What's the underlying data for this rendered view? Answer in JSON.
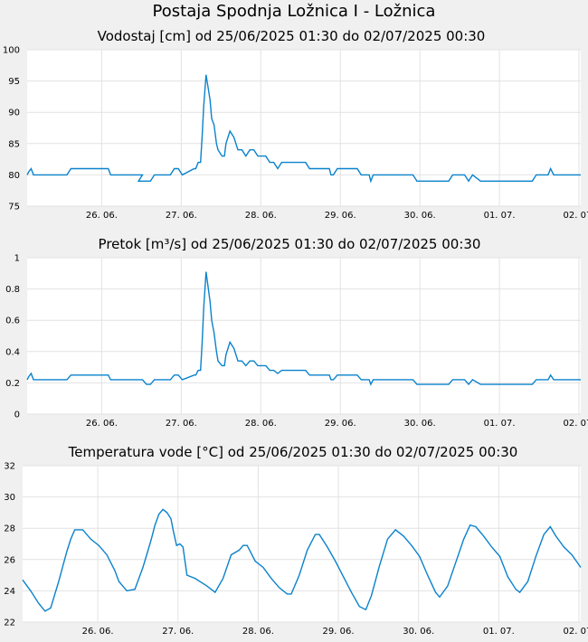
{
  "page_title": "Postaja Spodnja Ložnica I - Ložnica",
  "colors": {
    "series": "#0a82cc",
    "background": "#f0f0f0",
    "plot_background": "#ffffff",
    "grid": "#e2e2e2"
  },
  "chart_data": [
    {
      "type": "line",
      "title": "Vodostaj [cm] od 25/06/2025 01:30 do 02/07/2025 00:30",
      "xlabel": "",
      "ylabel": "",
      "x_tick_labels": [
        "26. 06.",
        "27. 06.",
        "28. 06.",
        "29. 06.",
        "30. 06.",
        "01. 07.",
        "02. 07."
      ],
      "x_tick_days": [
        0.9375,
        1.9375,
        2.9375,
        3.9375,
        4.9375,
        5.9375,
        6.9375
      ],
      "xlim_days": [
        0,
        6.96
      ],
      "yticks": [
        75,
        80,
        85,
        90,
        95,
        100
      ],
      "ylim": [
        75,
        100
      ],
      "grid": true,
      "series": [
        {
          "x_days": [
            0,
            0.02,
            0.05,
            0.08,
            0.1,
            0.5,
            0.55,
            1.02,
            1.05,
            1.4,
            1.45,
            1.4,
            1.55,
            1.6,
            1.8,
            1.85,
            1.9,
            1.95,
            2.1,
            2.12,
            2.15,
            2.18,
            2.2,
            2.22,
            2.25,
            2.3,
            2.32,
            2.35,
            2.38,
            2.4,
            2.45,
            2.48,
            2.5,
            2.55,
            2.6,
            2.65,
            2.7,
            2.75,
            2.8,
            2.85,
            2.9,
            2.95,
            3.0,
            3.05,
            3.1,
            3.15,
            3.2,
            3.3,
            3.5,
            3.55,
            3.8,
            3.82,
            3.85,
            3.9,
            4.15,
            4.2,
            4.3,
            4.32,
            4.35,
            4.4,
            4.85,
            4.9,
            5.3,
            5.35,
            5.5,
            5.55,
            5.6,
            5.7,
            6.35,
            6.4,
            6.55,
            6.58,
            6.62,
            6.96
          ],
          "values": [
            80,
            80.5,
            81,
            80,
            80,
            80,
            81,
            81,
            80,
            80,
            80,
            79,
            79,
            80,
            80,
            81,
            81,
            80,
            81,
            81,
            82,
            82,
            86,
            91,
            96,
            92,
            89,
            88,
            85,
            84,
            83,
            83,
            85,
            87,
            86,
            84,
            84,
            83,
            84,
            84,
            83,
            83,
            83,
            82,
            82,
            81,
            82,
            82,
            82,
            81,
            81,
            80,
            80,
            81,
            81,
            80,
            80,
            79,
            80,
            80,
            80,
            79,
            79,
            80,
            80,
            79,
            80,
            79,
            79,
            80,
            80,
            81,
            80,
            80
          ]
        }
      ]
    },
    {
      "type": "line",
      "title": "Pretok [m³/s] od 25/06/2025 01:30 do 02/07/2025 00:30",
      "xlabel": "",
      "ylabel": "",
      "x_tick_labels": [
        "26. 06.",
        "27. 06.",
        "28. 06.",
        "29. 06.",
        "30. 06.",
        "01. 07.",
        "02. 07."
      ],
      "x_tick_days": [
        0.9375,
        1.9375,
        2.9375,
        3.9375,
        4.9375,
        5.9375,
        6.9375
      ],
      "xlim_days": [
        0,
        6.96
      ],
      "yticks": [
        0,
        0.2,
        0.4,
        0.6,
        0.8,
        1
      ],
      "ylim": [
        0,
        1
      ],
      "grid": true,
      "series": [
        {
          "x_days": [
            0,
            0.02,
            0.05,
            0.08,
            0.1,
            0.5,
            0.55,
            1.02,
            1.05,
            1.4,
            1.45,
            1.5,
            1.55,
            1.6,
            1.8,
            1.85,
            1.9,
            1.95,
            2.1,
            2.12,
            2.15,
            2.18,
            2.2,
            2.22,
            2.25,
            2.3,
            2.32,
            2.35,
            2.38,
            2.4,
            2.45,
            2.48,
            2.5,
            2.55,
            2.6,
            2.65,
            2.7,
            2.75,
            2.8,
            2.85,
            2.9,
            2.95,
            3.0,
            3.05,
            3.1,
            3.15,
            3.2,
            3.3,
            3.5,
            3.55,
            3.8,
            3.82,
            3.85,
            3.9,
            4.15,
            4.2,
            4.3,
            4.32,
            4.35,
            4.4,
            4.85,
            4.9,
            5.3,
            5.35,
            5.5,
            5.55,
            5.6,
            5.7,
            6.35,
            6.4,
            6.55,
            6.58,
            6.62,
            6.96
          ],
          "values": [
            0.22,
            0.24,
            0.26,
            0.22,
            0.22,
            0.22,
            0.25,
            0.25,
            0.22,
            0.22,
            0.22,
            0.19,
            0.19,
            0.22,
            0.22,
            0.25,
            0.25,
            0.22,
            0.25,
            0.25,
            0.28,
            0.28,
            0.45,
            0.68,
            0.91,
            0.72,
            0.6,
            0.52,
            0.4,
            0.34,
            0.31,
            0.31,
            0.38,
            0.46,
            0.42,
            0.34,
            0.34,
            0.31,
            0.34,
            0.34,
            0.31,
            0.31,
            0.31,
            0.28,
            0.28,
            0.26,
            0.28,
            0.28,
            0.28,
            0.25,
            0.25,
            0.22,
            0.22,
            0.25,
            0.25,
            0.22,
            0.22,
            0.19,
            0.22,
            0.22,
            0.22,
            0.19,
            0.19,
            0.22,
            0.22,
            0.19,
            0.22,
            0.19,
            0.19,
            0.22,
            0.22,
            0.25,
            0.22,
            0.22
          ]
        }
      ]
    },
    {
      "type": "line",
      "title": "Temperatura vode [°C] od 25/06/2025 01:30 do 02/07/2025 00:30",
      "xlabel": "",
      "ylabel": "",
      "x_tick_labels": [
        "26. 06.",
        "27. 06.",
        "28. 06.",
        "29. 06.",
        "30. 06.",
        "01. 07.",
        "02. 07."
      ],
      "x_tick_days": [
        0.9375,
        1.9375,
        2.9375,
        3.9375,
        4.9375,
        5.9375,
        6.9375
      ],
      "xlim_days": [
        0,
        6.96
      ],
      "yticks": [
        22,
        24,
        26,
        28,
        30,
        32
      ],
      "ylim": [
        22,
        32
      ],
      "grid": true,
      "series": [
        {
          "x_days": [
            0,
            0.1,
            0.2,
            0.28,
            0.35,
            0.45,
            0.55,
            0.6,
            0.65,
            0.75,
            0.85,
            0.95,
            1.05,
            1.15,
            1.2,
            1.3,
            1.4,
            1.5,
            1.6,
            1.65,
            1.7,
            1.75,
            1.8,
            1.85,
            1.88,
            1.92,
            1.96,
            2.0,
            2.05,
            2.15,
            2.3,
            2.4,
            2.5,
            2.6,
            2.7,
            2.75,
            2.8,
            2.85,
            2.9,
            3.0,
            3.1,
            3.2,
            3.3,
            3.35,
            3.45,
            3.55,
            3.65,
            3.7,
            3.8,
            3.9,
            4.0,
            4.1,
            4.2,
            4.28,
            4.35,
            4.45,
            4.55,
            4.65,
            4.75,
            4.85,
            4.95,
            5.05,
            5.15,
            5.2,
            5.3,
            5.4,
            5.5,
            5.58,
            5.65,
            5.75,
            5.85,
            5.95,
            6.05,
            6.15,
            6.2,
            6.3,
            6.4,
            6.5,
            6.58,
            6.65,
            6.75,
            6.85,
            6.96
          ],
          "values": [
            24.7,
            24.0,
            23.2,
            22.7,
            22.9,
            24.6,
            26.5,
            27.3,
            27.9,
            27.9,
            27.3,
            26.9,
            26.3,
            25.3,
            24.6,
            24.0,
            24.1,
            25.5,
            27.2,
            28.2,
            28.9,
            29.2,
            29.0,
            28.6,
            27.8,
            26.9,
            27.0,
            26.8,
            25.0,
            24.8,
            24.3,
            23.9,
            24.8,
            26.3,
            26.6,
            26.9,
            26.9,
            26.4,
            25.9,
            25.5,
            24.8,
            24.2,
            23.8,
            23.8,
            25.0,
            26.6,
            27.6,
            27.6,
            26.8,
            25.9,
            24.9,
            23.9,
            23.0,
            22.8,
            23.7,
            25.6,
            27.3,
            27.9,
            27.5,
            26.9,
            26.2,
            25.0,
            23.9,
            23.6,
            24.3,
            25.8,
            27.3,
            28.2,
            28.1,
            27.5,
            26.8,
            26.2,
            24.9,
            24.1,
            23.9,
            24.6,
            26.2,
            27.6,
            28.1,
            27.5,
            26.8,
            26.3,
            25.5
          ]
        }
      ]
    }
  ]
}
